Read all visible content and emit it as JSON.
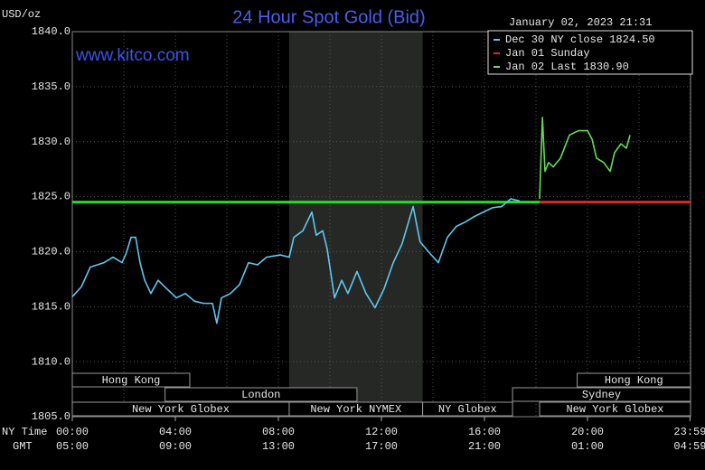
{
  "chart_data": {
    "type": "line",
    "title": "24 Hour Spot Gold (Bid)",
    "y_label": "USD/oz",
    "watermark": "www.kitco.com",
    "timestamp": "January 02, 2023 21:31",
    "x_label": "NY Time",
    "x_label2": "GMT",
    "xlim": [
      0,
      24
    ],
    "xticks": [
      {
        "value": 0,
        "label": "00:00"
      },
      {
        "value": 4,
        "label": "04:00"
      },
      {
        "value": 8,
        "label": "08:00"
      },
      {
        "value": 12,
        "label": "12:00"
      },
      {
        "value": 16,
        "label": "16:00"
      },
      {
        "value": 20,
        "label": "20:00"
      },
      {
        "value": 23.98,
        "label": "23:59"
      }
    ],
    "xticks_gmt": [
      "05:00",
      "09:00",
      "13:00",
      "17:00",
      "21:00",
      "01:00",
      "04:59"
    ],
    "xminorticks": [
      2,
      6,
      10,
      14,
      18,
      22
    ],
    "ylim": [
      1805,
      1840
    ],
    "yticks": [
      {
        "value": 1805,
        "label": "1805.0"
      },
      {
        "value": 1810,
        "label": "1810.0"
      },
      {
        "value": 1815,
        "label": "1815.0"
      },
      {
        "value": 1820,
        "label": "1820.0"
      },
      {
        "value": 1825,
        "label": "1825.0"
      },
      {
        "value": 1830,
        "label": "1830.0"
      },
      {
        "value": 1835,
        "label": "1835.0"
      },
      {
        "value": 1840,
        "label": "1840.0"
      }
    ],
    "grid": true,
    "legend": "top-right",
    "shade": {
      "x": [
        8.42,
        13.6
      ],
      "color": "#262826"
    },
    "close_line": {
      "x": [
        0,
        18.14
      ],
      "values": [
        1824.5,
        1824.5
      ],
      "color": "#22dd22"
    },
    "series": [
      {
        "name": "Dec 30 NY close 1824.50",
        "color": "#5ec8f0",
        "x": [
          0,
          0.35,
          0.7,
          1.23,
          1.58,
          1.93,
          2.1,
          2.28,
          2.46,
          2.63,
          2.81,
          3.05,
          3.33,
          3.68,
          4.04,
          4.39,
          4.74,
          5.09,
          5.44,
          5.61,
          5.79,
          6.14,
          6.49,
          6.84,
          7.19,
          7.54,
          8.07,
          8.42,
          8.6,
          8.95,
          9.3,
          9.47,
          9.72,
          9.89,
          10.18,
          10.46,
          10.7,
          11.05,
          11.4,
          11.75,
          12.1,
          12.46,
          12.8,
          13.23,
          13.5,
          13.86,
          14.21,
          14.56,
          14.91,
          15.26,
          15.61,
          15.96,
          16.32,
          16.67,
          17.02,
          17.37
        ],
        "values": [
          1815.9,
          1816.8,
          1818.6,
          1819.0,
          1819.5,
          1819.0,
          1819.9,
          1821.3,
          1821.3,
          1819.0,
          1817.4,
          1816.2,
          1817.4,
          1816.6,
          1815.8,
          1816.2,
          1815.5,
          1815.3,
          1815.3,
          1813.5,
          1815.8,
          1816.2,
          1817.0,
          1819.0,
          1818.8,
          1819.5,
          1819.7,
          1819.5,
          1821.3,
          1821.9,
          1823.6,
          1821.5,
          1821.9,
          1820.3,
          1815.8,
          1817.4,
          1816.2,
          1818.2,
          1816.2,
          1814.9,
          1816.6,
          1819.0,
          1820.7,
          1824.1,
          1820.9,
          1819.9,
          1819.0,
          1821.3,
          1822.3,
          1822.7,
          1823.2,
          1823.6,
          1824.0,
          1824.1,
          1824.8,
          1824.6
        ]
      },
      {
        "name": "Jan 01 Sunday",
        "color": "#e02828",
        "x": [
          18.14,
          24
        ],
        "values": [
          1824.5,
          1824.5
        ]
      },
      {
        "name": "Jan 02 Last 1830.90",
        "color": "#66dd55",
        "x": [
          18.14,
          18.25,
          18.35,
          18.49,
          18.67,
          18.95,
          19.3,
          19.65,
          20.0,
          20.18,
          20.35,
          20.63,
          20.88,
          21.05,
          21.3,
          21.51,
          21.65
        ],
        "values": [
          1824.8,
          1832.2,
          1827.3,
          1828.1,
          1827.7,
          1828.5,
          1830.6,
          1831.0,
          1831.0,
          1830.2,
          1828.5,
          1828.1,
          1827.3,
          1829.0,
          1829.8,
          1829.4,
          1830.6
        ]
      }
    ],
    "sessions": [
      {
        "label": "Hong Kong",
        "start": 0,
        "end": 4.56
      },
      {
        "label": "London",
        "start": 3.6,
        "end": 11.05
      },
      {
        "label": "New York Globex",
        "start": 0,
        "end": 8.42
      },
      {
        "label": "New York NYMEX",
        "start": 8.42,
        "end": 13.6
      },
      {
        "label": "NY Globex",
        "start": 13.6,
        "end": 17.09
      },
      {
        "label": "Hong Kong",
        "start": 19.6,
        "end": 24
      },
      {
        "label": "Sydney",
        "start": 17.09,
        "end": 24
      },
      {
        "label": "New York Globex",
        "start": 18.14,
        "end": 24
      }
    ]
  }
}
